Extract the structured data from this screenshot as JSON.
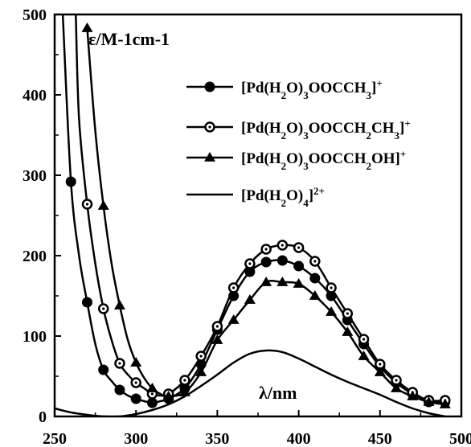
{
  "chart_data": {
    "type": "line",
    "title": "",
    "xlabel": "λ/nm",
    "ylabel": "ε/M-1cm-1",
    "xlim": [
      250,
      500
    ],
    "ylim": [
      0,
      500
    ],
    "x_ticks": [
      "250",
      "300",
      "350",
      "400",
      "450",
      "500"
    ],
    "y_ticks": [
      "0",
      "100",
      "200",
      "300",
      "400",
      "500"
    ],
    "legend_placement": "top-right",
    "series": [
      {
        "name": "[Pd(H2O)3OOCCH3]+",
        "legend_parts": [
          "[Pd(H",
          "2",
          "O)",
          "3",
          "OOCCH",
          "3",
          "]",
          "+"
        ],
        "marker": "filled-circle",
        "marker_x": [
          260,
          270,
          280,
          290,
          300,
          310,
          320,
          330,
          340,
          350,
          360,
          370,
          380,
          390,
          400,
          410,
          420,
          430,
          440,
          450,
          460,
          470,
          480,
          490
        ],
        "x": [
          255,
          260,
          265,
          270,
          275,
          280,
          285,
          290,
          295,
          300,
          305,
          310,
          315,
          320,
          330,
          340,
          350,
          360,
          370,
          380,
          390,
          400,
          410,
          420,
          430,
          440,
          450,
          460,
          470,
          480,
          490
        ],
        "y": [
          500,
          292,
          200,
          142,
          90,
          58,
          44,
          33,
          26,
          22,
          19,
          17,
          19,
          22,
          35,
          65,
          108,
          150,
          180,
          192,
          194,
          187,
          172,
          150,
          120,
          90,
          62,
          42,
          28,
          18,
          18
        ]
      },
      {
        "name": "[Pd(H2O)3OOCCH2CH3]+",
        "legend_parts": [
          "[Pd(H",
          "2",
          "O)",
          "3",
          "OOCCH",
          "2",
          "CH",
          "3",
          "]",
          "+"
        ],
        "marker": "dotted-circle",
        "marker_x": [
          260,
          270,
          280,
          290,
          300,
          310,
          320,
          330,
          340,
          350,
          360,
          370,
          380,
          390,
          400,
          410,
          420,
          430,
          440,
          450,
          460,
          470,
          480,
          490
        ],
        "x": [
          263,
          265,
          270,
          275,
          280,
          285,
          290,
          295,
          300,
          305,
          310,
          315,
          320,
          330,
          340,
          350,
          360,
          370,
          380,
          390,
          400,
          410,
          420,
          430,
          440,
          450,
          460,
          470,
          480,
          490
        ],
        "y": [
          500,
          370,
          264,
          190,
          134,
          95,
          66,
          52,
          42,
          35,
          28,
          26,
          28,
          45,
          75,
          112,
          160,
          190,
          208,
          213,
          210,
          193,
          160,
          128,
          96,
          65,
          45,
          30,
          20,
          20
        ]
      },
      {
        "name": "[Pd(H2O)3OOCCH2OH]+",
        "legend_parts": [
          "[Pd(H",
          "2",
          "O)",
          "3",
          "OOCCH",
          "2",
          "OH]",
          "+"
        ],
        "marker": "filled-triangle",
        "marker_x": [
          270,
          280,
          290,
          300,
          310,
          320,
          330,
          340,
          350,
          360,
          370,
          380,
          390,
          400,
          410,
          420,
          430,
          440,
          450,
          460,
          470,
          480,
          490
        ],
        "x": [
          270,
          275,
          280,
          285,
          290,
          295,
          300,
          305,
          310,
          315,
          320,
          330,
          340,
          350,
          360,
          370,
          380,
          390,
          400,
          410,
          420,
          430,
          440,
          450,
          460,
          470,
          480,
          490
        ],
        "y": [
          483,
          355,
          262,
          190,
          138,
          95,
          67,
          48,
          35,
          28,
          25,
          30,
          55,
          95,
          120,
          145,
          167,
          167,
          165,
          150,
          130,
          105,
          75,
          55,
          35,
          25,
          18,
          15
        ]
      },
      {
        "name": "[Pd(H2O)4]2+",
        "legend_parts": [
          "[Pd(H",
          "2",
          "O)",
          "4",
          "]",
          "2+"
        ],
        "marker": "none",
        "x": [
          250,
          260,
          270,
          280,
          290,
          300,
          310,
          320,
          330,
          340,
          350,
          360,
          370,
          380,
          390,
          400,
          410,
          420,
          430,
          440,
          450,
          460,
          470,
          480,
          490
        ],
        "y": [
          10,
          5,
          2,
          0,
          0,
          3,
          8,
          15,
          25,
          38,
          52,
          67,
          78,
          82,
          80,
          72,
          62,
          52,
          43,
          35,
          27,
          18,
          10,
          4,
          0
        ]
      }
    ]
  }
}
